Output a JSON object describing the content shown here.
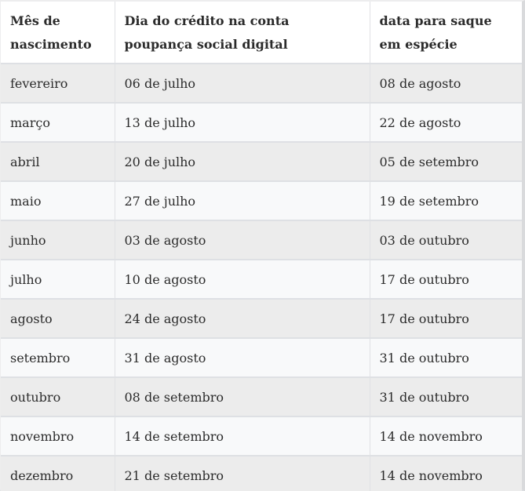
{
  "table": {
    "columns": [
      {
        "label": "Mês de nascimento"
      },
      {
        "label": "Dia do crédito na conta poupança social digital"
      },
      {
        "label": "data para saque em espécie"
      }
    ],
    "rows": [
      [
        "fevereiro",
        "06 de julho",
        "08 de agosto"
      ],
      [
        "março",
        "13 de julho",
        "22 de agosto"
      ],
      [
        "abril",
        "20 de julho",
        "05 de setembro"
      ],
      [
        "maio",
        "27 de julho",
        "19 de setembro"
      ],
      [
        "junho",
        "03 de agosto",
        "03 de outubro"
      ],
      [
        "julho",
        "10 de agosto",
        "17 de outubro"
      ],
      [
        "agosto",
        "24 de agosto",
        "17 de outubro"
      ],
      [
        "setembro",
        "31 de agosto",
        "31 de outubro"
      ],
      [
        "outubro",
        "08 de setembro",
        "31 de outubro"
      ],
      [
        "novembro",
        "14 de setembro",
        "14 de novembro"
      ],
      [
        "dezembro",
        "21 de setembro",
        "14 de novembro"
      ]
    ],
    "cell_names": [
      "cell-birth-month",
      "cell-credit-date",
      "cell-withdrawal-date"
    ],
    "colors": {
      "header_bg": "#ffffff",
      "row_gray": "#ececec",
      "row_light": "#f8f9fa",
      "border": "#dee0e4",
      "border_vertical": "#e0e1e4",
      "edge_light": "#ededee",
      "edge_dark": "#d9dadc",
      "text": "#2b2b2b"
    }
  },
  "chart_data": {
    "type": "table",
    "title": "",
    "columns": [
      "Mês de nascimento",
      "Dia do crédito na conta poupança social digital",
      "data para saque em espécie"
    ],
    "rows": [
      [
        "fevereiro",
        "06 de julho",
        "08 de agosto"
      ],
      [
        "março",
        "13 de julho",
        "22 de agosto"
      ],
      [
        "abril",
        "20 de julho",
        "05 de setembro"
      ],
      [
        "maio",
        "27 de julho",
        "19 de setembro"
      ],
      [
        "junho",
        "03 de agosto",
        "03 de outubro"
      ],
      [
        "julho",
        "10 de agosto",
        "17 de outubro"
      ],
      [
        "agosto",
        "24 de agosto",
        "17 de outubro"
      ],
      [
        "setembro",
        "31 de agosto",
        "31 de outubro"
      ],
      [
        "outubro",
        "08 de setembro",
        "31 de outubro"
      ],
      [
        "novembro",
        "14 de setembro",
        "14 de novembro"
      ],
      [
        "dezembro",
        "21 de setembro",
        "14 de novembro"
      ]
    ]
  }
}
